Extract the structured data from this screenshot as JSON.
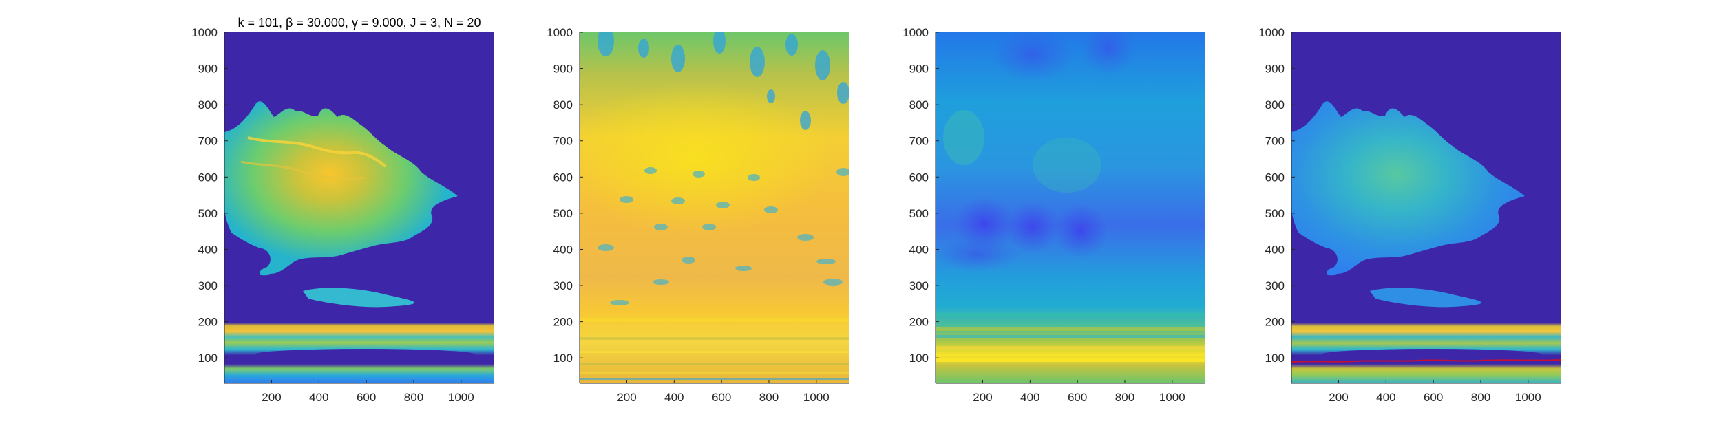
{
  "figure": {
    "title": "k = 101, β = 30.000, γ = 9.000, J = 3, N = 20"
  },
  "chart_data": [
    {
      "type": "heatmap",
      "title": "k = 101, β = 30.000, γ = 9.000, J = 3, N = 20",
      "xlabel": "",
      "ylabel": "",
      "xlim": [
        1,
        1140
      ],
      "ylim": [
        30,
        1000
      ],
      "x_ticks": [
        200,
        400,
        600,
        800,
        1000
      ],
      "y_ticks": [
        100,
        200,
        300,
        400,
        500,
        600,
        700,
        800,
        900,
        1000
      ],
      "colormap": "parula",
      "background_color": "#3e26a8",
      "features": [
        {
          "label": "cloud",
          "x_range": [
            1,
            980
          ],
          "y_range": [
            330,
            830
          ],
          "peak_color": "#f9c62d"
        },
        {
          "label": "streak",
          "x_range": [
            330,
            700
          ],
          "y_range": [
            230,
            290
          ],
          "color": "#35b9d0"
        },
        {
          "label": "bands",
          "x_range": [
            1,
            1140
          ],
          "y_range": [
            30,
            190
          ],
          "color": "#8ccb5e"
        }
      ],
      "grid": false
    },
    {
      "type": "heatmap",
      "title": "",
      "xlabel": "",
      "ylabel": "",
      "xlim": [
        1,
        1140
      ],
      "ylim": [
        30,
        1000
      ],
      "x_ticks": [
        200,
        400,
        600,
        800,
        1000
      ],
      "y_ticks": [
        100,
        200,
        300,
        400,
        500,
        600,
        700,
        800,
        900,
        1000
      ],
      "colormap": "parula",
      "background_color": "#f5bd3a",
      "features": [
        {
          "label": "top-blobs",
          "y_range": [
            800,
            1000
          ],
          "color": "#2ea4df"
        },
        {
          "label": "bright-core",
          "x_range": [
            200,
            800
          ],
          "y_range": [
            500,
            800
          ],
          "color": "#f8e01f"
        },
        {
          "label": "low-band",
          "y_range": [
            30,
            200
          ],
          "color": "#f7d43a"
        }
      ],
      "grid": false
    },
    {
      "type": "heatmap",
      "title": "",
      "xlabel": "",
      "ylabel": "",
      "xlim": [
        1,
        1140
      ],
      "ylim": [
        30,
        1000
      ],
      "x_ticks": [
        200,
        400,
        600,
        800,
        1000
      ],
      "y_ticks": [
        100,
        200,
        300,
        400,
        500,
        600,
        700,
        800,
        900,
        1000
      ],
      "colormap": "parula",
      "background_color": "#1fa6d6",
      "features": [
        {
          "label": "dark-spots",
          "x_range": [
            250,
            650
          ],
          "y_range": [
            400,
            520
          ],
          "color": "#3d53e8"
        },
        {
          "label": "bright-line",
          "y_range": [
            80,
            110
          ],
          "color": "#f9e428"
        },
        {
          "label": "green-band",
          "y_range": [
            30,
            230
          ],
          "color": "#6dc56c"
        }
      ],
      "grid": false
    },
    {
      "type": "heatmap",
      "title": "",
      "xlabel": "",
      "ylabel": "",
      "xlim": [
        1,
        1140
      ],
      "ylim": [
        30,
        1000
      ],
      "x_ticks": [
        200,
        400,
        600,
        800,
        1000
      ],
      "y_ticks": [
        100,
        200,
        300,
        400,
        500,
        600,
        700,
        800,
        900,
        1000
      ],
      "colormap": "parula",
      "background_color": "#3e26a8",
      "features": [
        {
          "label": "cloud",
          "x_range": [
            1,
            980
          ],
          "y_range": [
            330,
            830
          ],
          "color": "#3fa2e3"
        },
        {
          "label": "bands",
          "y_range": [
            30,
            190
          ],
          "color": "#c8c43c"
        },
        {
          "label": "red-trace",
          "y_range": [
            88,
            92
          ],
          "color": "#c8102e"
        }
      ],
      "grid": false
    }
  ]
}
